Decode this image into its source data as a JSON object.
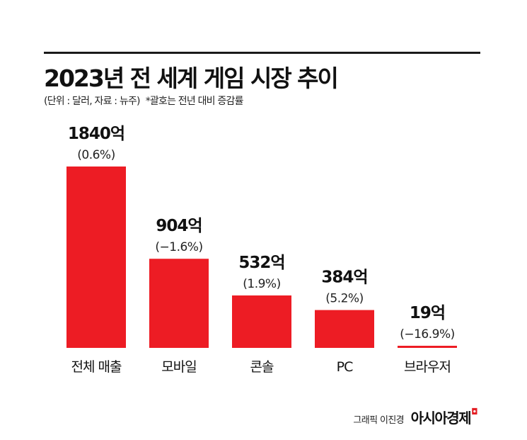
{
  "chart_data": {
    "type": "bar",
    "title": "2023년 전 세계 게임 시장 추이",
    "subtitle": "(단위 : 달러, 자료 : 뉴주)",
    "note": "*괄호는 전년 대비 증감률",
    "categories": [
      "전체 매출",
      "모바일",
      "콘솔",
      "PC",
      "브라우저"
    ],
    "values": [
      1840,
      904,
      532,
      384,
      19
    ],
    "value_labels": [
      "1840억",
      "904억",
      "532억",
      "384억",
      "19억"
    ],
    "change_labels": [
      "(0.6%)",
      "(−1.6%)",
      "(1.9%)",
      "(5.2%)",
      "(−16.9%)"
    ],
    "ylim": [
      0,
      1840
    ],
    "bar_color": "#ed1c24",
    "grid": false
  },
  "credit": {
    "graphic": "그래픽 이진경",
    "brand": "아시아경제"
  }
}
